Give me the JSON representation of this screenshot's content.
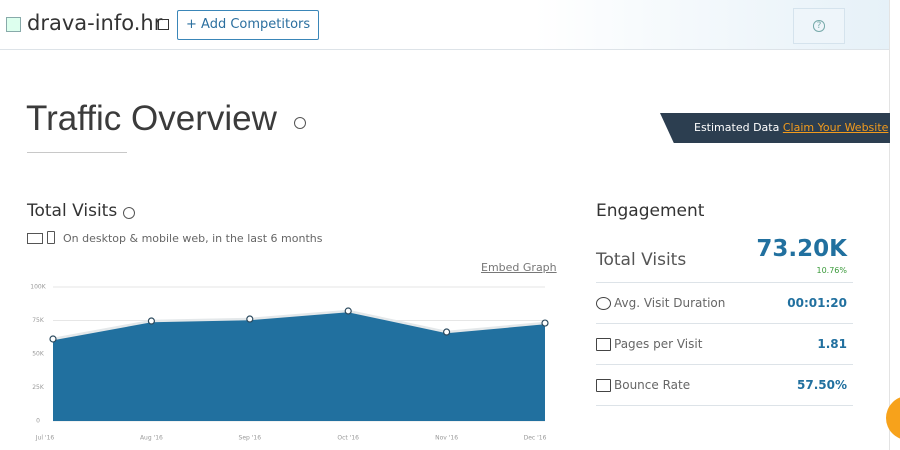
{
  "header": {
    "domain": "drava-info.hr",
    "button": "+ Add Competitors",
    "help": "?"
  },
  "overview": {
    "title": "Traffic Overview"
  },
  "banner": {
    "text": "Estimated Data",
    "link": "Claim Your Website"
  },
  "visits": {
    "title": "Total Visits",
    "subtitle": "On desktop & mobile web, in the last 6 months",
    "embed": "Embed Graph"
  },
  "chart_data": {
    "type": "area",
    "categories": [
      "Jul '16",
      "Aug '16",
      "Sep '16",
      "Oct '16",
      "Nov '16",
      "Dec '16"
    ],
    "values": [
      61200,
      74600,
      76100,
      82100,
      66400,
      73100
    ],
    "color": "#21709f",
    "ylim": [
      0,
      100000
    ],
    "yticks": [
      0,
      {
        "value": 25000,
        "label": "25K"
      },
      {
        "value": 50000,
        "label": "50K"
      },
      {
        "value": 75000,
        "label": "75K"
      },
      {
        "value": 100000,
        "label": "100K"
      }
    ],
    "grid": true
  },
  "engagement": {
    "title": "Engagement",
    "rows": [
      {
        "label": "Total Visits",
        "value": "73.20K",
        "change": "10.76%"
      },
      {
        "label": "Avg. Visit Duration",
        "value": "00:01:20"
      },
      {
        "label": "Pages per Visit",
        "value": "1.81"
      },
      {
        "label": "Bounce Rate",
        "value": "57.50%"
      }
    ]
  }
}
